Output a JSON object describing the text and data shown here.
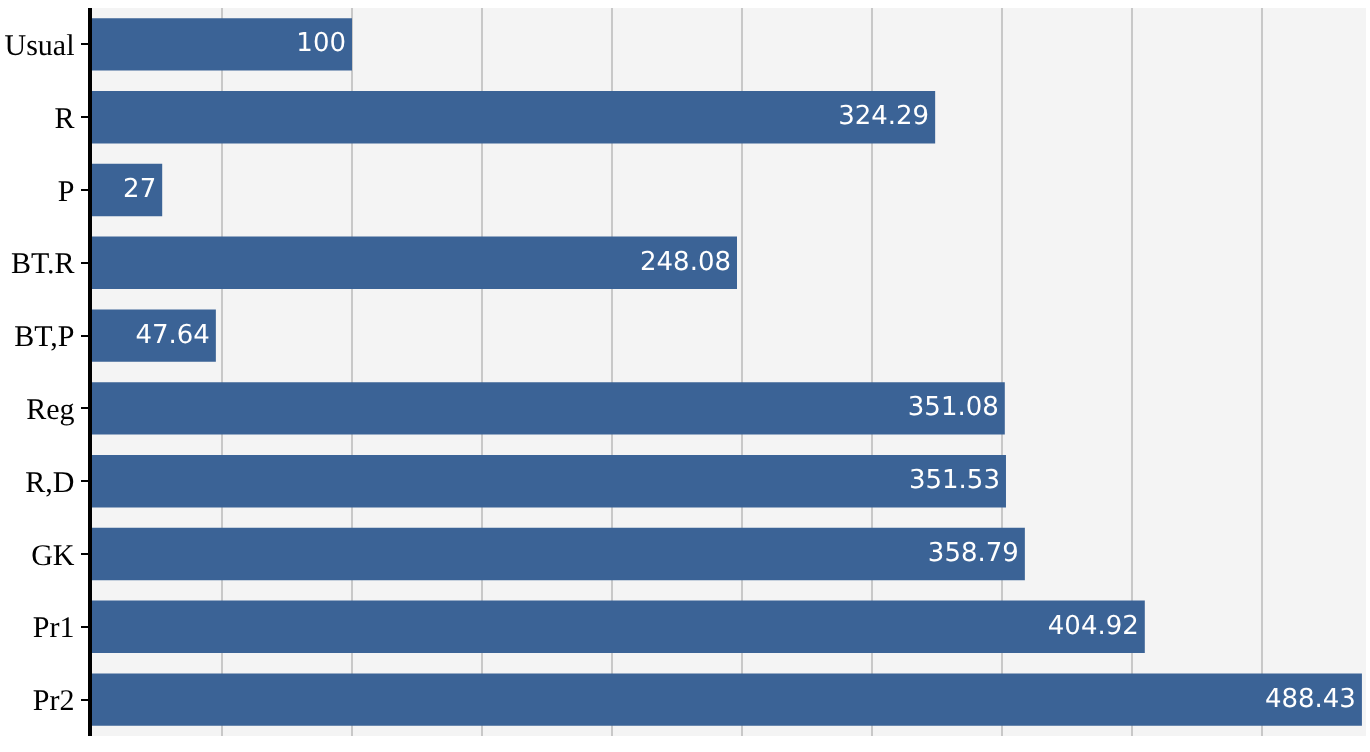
{
  "chart_data": {
    "type": "bar",
    "orientation": "horizontal",
    "categories": [
      "Usual",
      "R",
      "P",
      "BT.R",
      "BT,P",
      "Reg",
      "R,D",
      "GK",
      "Pr1",
      "Pr2"
    ],
    "values": [
      100,
      324.29,
      27,
      248.08,
      47.64,
      351.08,
      351.53,
      358.79,
      404.92,
      488.43
    ],
    "color": "#3b6396",
    "data_labels": true,
    "xlim": [
      0,
      490
    ],
    "xticks": [
      {
        "value": 0,
        "label": null
      },
      {
        "value": 50,
        "label": null
      },
      {
        "value": 100,
        "label": null
      },
      {
        "value": 150,
        "label": null
      },
      {
        "value": 200,
        "label": null
      },
      {
        "value": 250,
        "label": null
      },
      {
        "value": 300,
        "label": null
      },
      {
        "value": 350,
        "label": null
      },
      {
        "value": 400,
        "label": null
      },
      {
        "value": 450,
        "label": null
      }
    ],
    "grid": "x",
    "tick_labels": "y"
  }
}
